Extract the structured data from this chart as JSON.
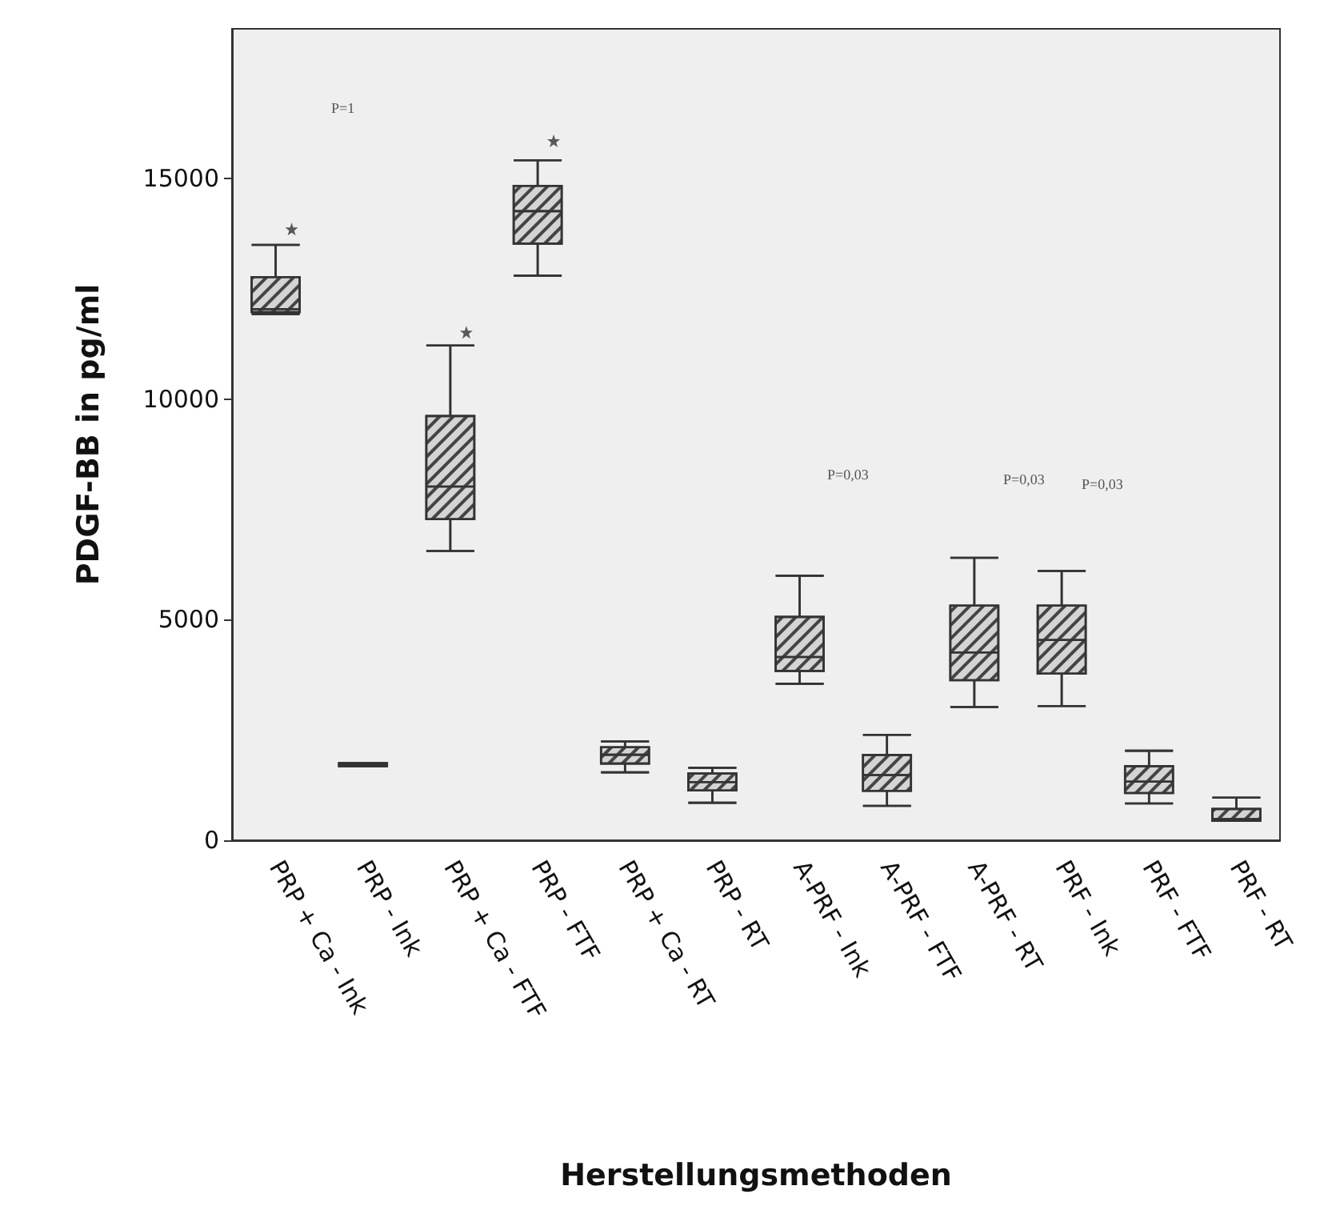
{
  "chart_data": {
    "type": "box",
    "xlabel": "Herstellungsmethoden",
    "ylabel": "PDGF-BB in pg/ml",
    "categories": [
      "PRP + Ca - Ink",
      "PRP - Ink",
      "PRP + Ca - FTF",
      "PRP - FTF",
      "PRP + Ca - RT",
      "PRP - RT",
      "A-PRF - Ink",
      "A-PRF - FTF",
      "A-PRF - RT",
      "PRF - Ink",
      "PRF - FTF",
      "PRF - RT"
    ],
    "boxes": [
      {
        "low": 11930,
        "q1": 11975,
        "median": 12045,
        "q3": 12770,
        "high": 13500,
        "outliers": [
          13860
        ]
      },
      {
        "low": 1680,
        "q1": 1680,
        "median": 1710,
        "q3": 1750,
        "high": 1750
      },
      {
        "low": 6560,
        "q1": 7280,
        "median": 8020,
        "q3": 9620,
        "high": 11220,
        "outliers": [
          11520
        ]
      },
      {
        "low": 12805,
        "q1": 13530,
        "median": 14265,
        "q3": 14840,
        "high": 15420,
        "outliers": [
          15860
        ]
      },
      {
        "low": 1540,
        "q1": 1740,
        "median": 1940,
        "q3": 2110,
        "high": 2240
      },
      {
        "low": 850,
        "q1": 1130,
        "median": 1320,
        "q3": 1515,
        "high": 1645
      },
      {
        "low": 3550,
        "q1": 3840,
        "median": 4155,
        "q3": 5065,
        "high": 6000
      },
      {
        "low": 780,
        "q1": 1120,
        "median": 1480,
        "q3": 1935,
        "high": 2390
      },
      {
        "low": 3020,
        "q1": 3630,
        "median": 4260,
        "q3": 5320,
        "high": 6405
      },
      {
        "low": 3045,
        "q1": 3780,
        "median": 4540,
        "q3": 5320,
        "high": 6105
      },
      {
        "low": 835,
        "q1": 1070,
        "median": 1330,
        "q3": 1680,
        "high": 2030
      },
      {
        "low": 440,
        "q1": 440,
        "median": 480,
        "q3": 710,
        "high": 965
      }
    ],
    "color": "#d4d4d4",
    "marker": "star",
    "ylim": [
      0,
      18400
    ],
    "yticks": [
      0,
      5000,
      10000,
      15000
    ],
    "grid": false,
    "annotations": [
      "P=1",
      "P=0,03",
      "P=0,03",
      "P=0,03"
    ]
  }
}
